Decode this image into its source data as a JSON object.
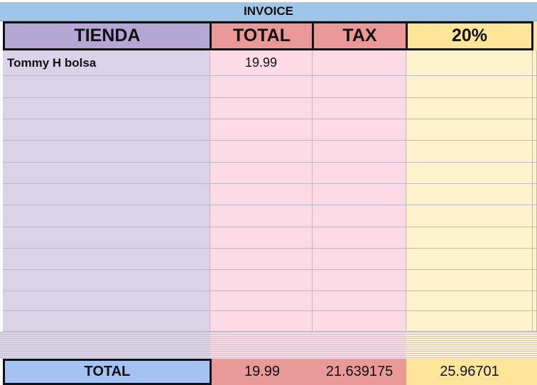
{
  "sheet": {
    "title": "INVOICE",
    "headers": [
      "TIENDA",
      "TOTAL",
      "TAX",
      "20%"
    ],
    "rows": [
      {
        "tienda": "Tommy H bolsa",
        "total": "19.99",
        "tax": "",
        "pct": ""
      },
      {
        "tienda": "",
        "total": "",
        "tax": "",
        "pct": ""
      },
      {
        "tienda": "",
        "total": "",
        "tax": "",
        "pct": ""
      },
      {
        "tienda": "",
        "total": "",
        "tax": "",
        "pct": ""
      },
      {
        "tienda": "",
        "total": "",
        "tax": "",
        "pct": ""
      },
      {
        "tienda": "",
        "total": "",
        "tax": "",
        "pct": ""
      },
      {
        "tienda": "",
        "total": "",
        "tax": "",
        "pct": ""
      },
      {
        "tienda": "",
        "total": "",
        "tax": "",
        "pct": ""
      },
      {
        "tienda": "",
        "total": "",
        "tax": "",
        "pct": ""
      },
      {
        "tienda": "",
        "total": "",
        "tax": "",
        "pct": ""
      },
      {
        "tienda": "",
        "total": "",
        "tax": "",
        "pct": ""
      },
      {
        "tienda": "",
        "total": "",
        "tax": "",
        "pct": ""
      },
      {
        "tienda": "",
        "total": "",
        "tax": "",
        "pct": ""
      }
    ],
    "totals": {
      "label": "TOTAL",
      "total": "19.99",
      "tax": "21.639175",
      "pct": "25.96701"
    }
  },
  "colors": {
    "title_bg": "#9fc5e8",
    "tienda_header": "#b4a7d6",
    "tienda_body": "#d9d2e9",
    "total_header": "#ea9999",
    "total_body": "#fcdbe6",
    "pct_header": "#ffe599",
    "pct_body": "#fff2cc",
    "totals_label_bg": "#a4c2f4"
  }
}
